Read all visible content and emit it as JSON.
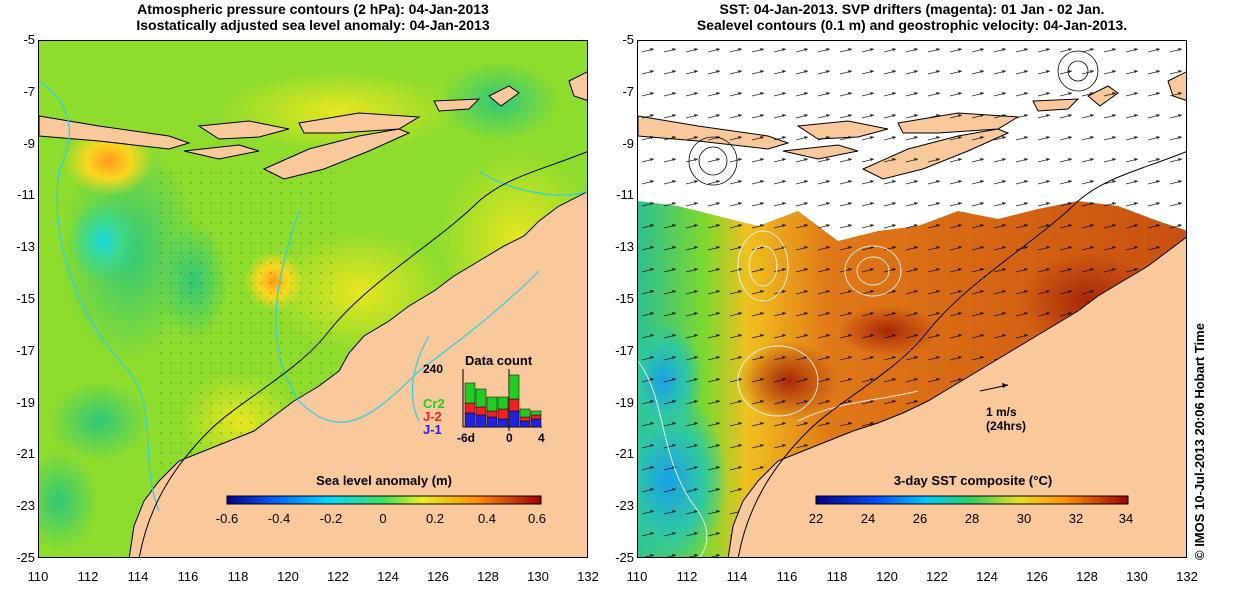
{
  "left_panel": {
    "title_line1": "Atmospheric pressure contours (2 hPa): 04-Jan-2013",
    "title_line2": "Isostatically adjusted sea level anomaly: 04-Jan-2013",
    "colorbar_title": "Sea level anomaly (m)",
    "colorbar_ticks": [
      "-0.6",
      "-0.4",
      "-0.2",
      "0",
      "0.2",
      "0.4",
      "0.6"
    ],
    "data_count": {
      "title": "Data count",
      "ymax_label": "240",
      "legend": [
        "Cr2",
        "J-2",
        "J-1"
      ],
      "legend_colors": [
        "#22cc22",
        "#ee2222",
        "#2222dd"
      ],
      "x_labels": [
        "-6d",
        "0",
        "4"
      ]
    }
  },
  "right_panel": {
    "title_line1": "SST: 04-Jan-2013. SVP drifters (magenta): 01 Jan - 02 Jan.",
    "title_line2": "Sealevel contours (0.1 m) and geostrophic velocity: 04-Jan-2013.",
    "colorbar_title": "3-day SST composite (°C)",
    "colorbar_ticks": [
      "22",
      "24",
      "26",
      "28",
      "30",
      "32",
      "34"
    ],
    "velocity_scale_line1": "1 m/s",
    "velocity_scale_line2": "(24hrs)"
  },
  "axes": {
    "y_labels": [
      "-5",
      "-7",
      "-9",
      "-11",
      "-13",
      "-15",
      "-17",
      "-19",
      "-21",
      "-23",
      "-25"
    ],
    "x_labels": [
      "110",
      "112",
      "114",
      "116",
      "118",
      "120",
      "122",
      "124",
      "126",
      "128",
      "130",
      "132"
    ]
  },
  "copyright": "© IMOS 10-Jul-2013 20:06 Hobart Time",
  "colors": {
    "land": "#f9c89b",
    "sla_background": "#9be02a",
    "sst_warm": "#d2691e",
    "no_data": "#ffffff"
  }
}
